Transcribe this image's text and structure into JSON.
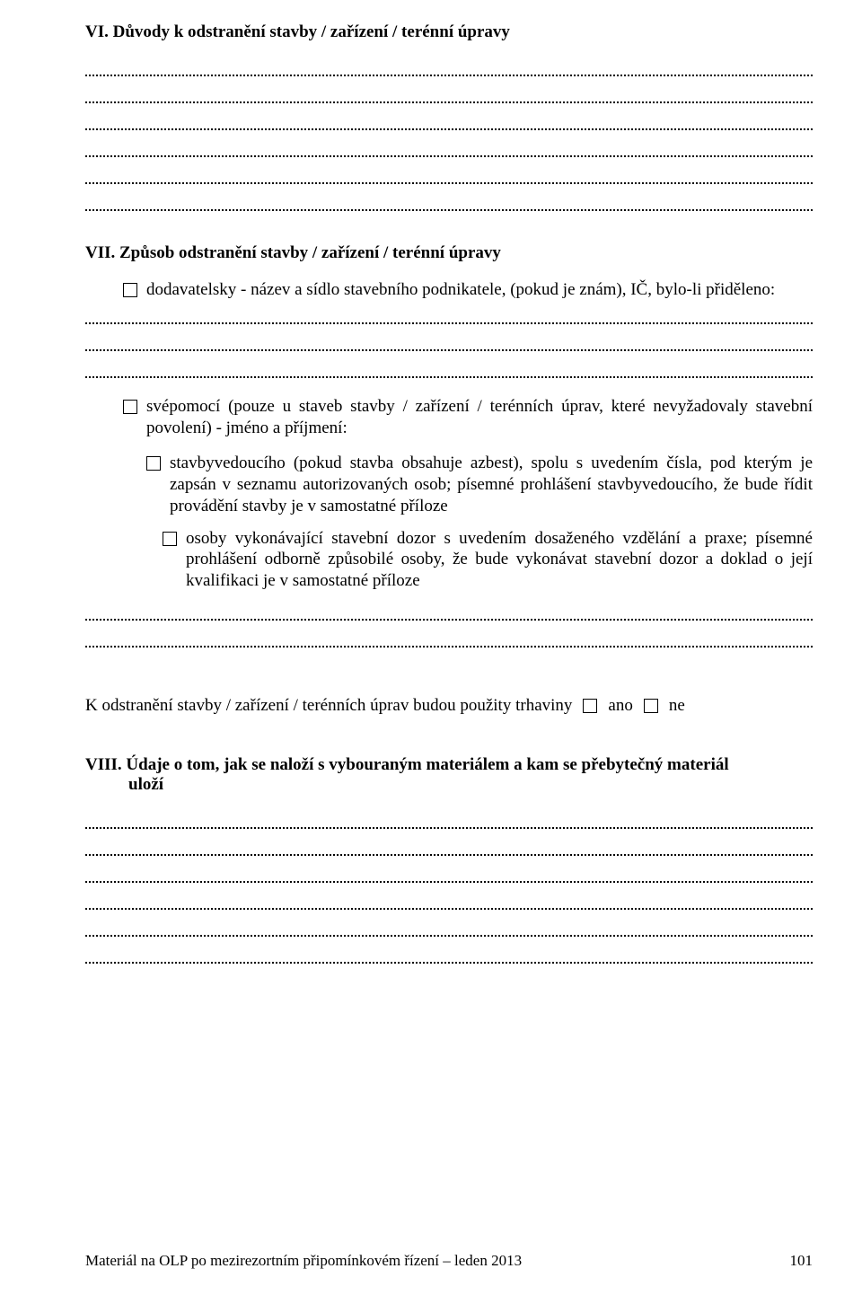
{
  "colors": {
    "text": "#000000",
    "background": "#ffffff",
    "dot": "#000000"
  },
  "section6": {
    "heading": "VI.  Důvody k odstranění stavby / zařízení / terénní úpravy",
    "dotted_line_count": 6
  },
  "section7": {
    "heading": "VII.  Způsob odstranění stavby / zařízení / terénní úpravy",
    "option_dodavatelsky": "dodavatelsky - název a sídlo stavebního podnikatele, (pokud je znám), IČ, bylo-li přiděleno:",
    "dotted_after_dodavatelsky": 3,
    "option_svepomoci": "svépomocí (pouze u staveb stavby / zařízení / terénních úprav, které nevyžadovaly stavební povolení)  -  jméno a příjmení:",
    "nested_option1": "stavbyvedoucího (pokud stavba obsahuje azbest), spolu s uvedením čísla, pod kterým je zapsán v seznamu autorizovaných osob; písemné prohlášení stavbyvedoucího, že bude řídit provádění stavby je v samostatné příloze",
    "nested_option2": "osoby vykonávající stavební dozor s uvedením dosaženého vzdělání a praxe; písemné prohlášení odborně způsobilé osoby, že bude vykonávat  stavební dozor  a doklad o její kvalifikaci je v samostatné příloze",
    "dotted_after_nested": 2,
    "blast_text": "K odstranění stavby / zařízení / terénních úprav budou použity trhaviny",
    "yes_label": "ano",
    "no_label": "ne"
  },
  "section8": {
    "heading_line1": "VIII.  Údaje o tom, jak se naloží s vybouraným materiálem a kam se přebytečný materiál",
    "heading_line2": "uloží",
    "dotted_line_count": 6
  },
  "footer": {
    "text": "Materiál na OLP po mezirezortním připomínkovém řízení – leden 2013",
    "page_number": "101"
  }
}
